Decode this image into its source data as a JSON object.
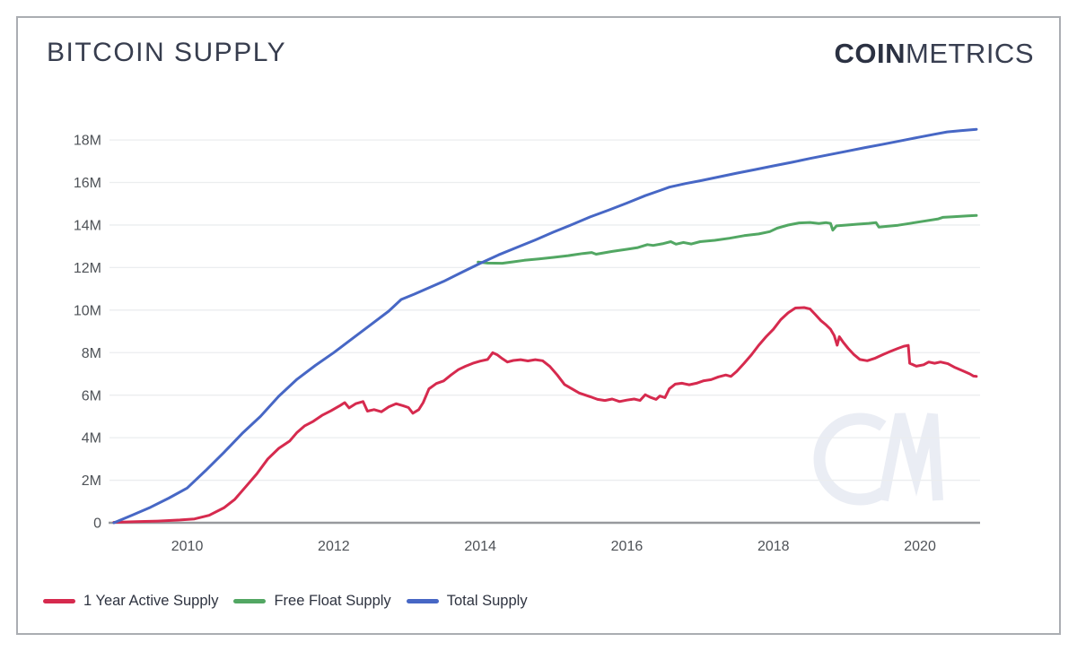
{
  "header": {
    "title": "BITCOIN SUPPLY",
    "logo_bold": "COIN",
    "logo_light": "METRICS"
  },
  "watermark": {
    "text": "CM",
    "color": "#eaedf4"
  },
  "chart_data": {
    "type": "line",
    "title": "BITCOIN SUPPLY",
    "xlabel": "",
    "ylabel": "",
    "x_unit": "year",
    "xlim": [
      2008.94,
      2020.82
    ],
    "ylim": [
      0,
      19.1
    ],
    "grid": "horizontal",
    "legend_position": "bottom-left",
    "axis_color": "#97999d",
    "gridline_color": "#ebedef",
    "yticks": [
      {
        "value": 0,
        "label": "0"
      },
      {
        "value": 2,
        "label": "2M"
      },
      {
        "value": 4,
        "label": "4M"
      },
      {
        "value": 6,
        "label": "6M"
      },
      {
        "value": 8,
        "label": "8M"
      },
      {
        "value": 10,
        "label": "10M"
      },
      {
        "value": 12,
        "label": "12M"
      },
      {
        "value": 14,
        "label": "14M"
      },
      {
        "value": 16,
        "label": "16M"
      },
      {
        "value": 18,
        "label": "18M"
      }
    ],
    "xticks": [
      {
        "value": 2010,
        "label": "2010"
      },
      {
        "value": 2012,
        "label": "2012"
      },
      {
        "value": 2014,
        "label": "2014"
      },
      {
        "value": 2016,
        "label": "2016"
      },
      {
        "value": 2018,
        "label": "2018"
      },
      {
        "value": 2020,
        "label": "2020"
      }
    ],
    "series": [
      {
        "name": "1 Year Active Supply",
        "color": "#d62a4e",
        "points": [
          [
            2009,
            0.02
          ],
          [
            2009.3,
            0.05
          ],
          [
            2009.6,
            0.08
          ],
          [
            2009.9,
            0.13
          ],
          [
            2010.1,
            0.18
          ],
          [
            2010.3,
            0.35
          ],
          [
            2010.5,
            0.7
          ],
          [
            2010.65,
            1.1
          ],
          [
            2010.8,
            1.7
          ],
          [
            2010.95,
            2.3
          ],
          [
            2011.1,
            3.0
          ],
          [
            2011.25,
            3.5
          ],
          [
            2011.4,
            3.85
          ],
          [
            2011.5,
            4.25
          ],
          [
            2011.6,
            4.55
          ],
          [
            2011.72,
            4.77
          ],
          [
            2011.84,
            5.05
          ],
          [
            2011.96,
            5.26
          ],
          [
            2012.08,
            5.5
          ],
          [
            2012.15,
            5.65
          ],
          [
            2012.21,
            5.4
          ],
          [
            2012.3,
            5.6
          ],
          [
            2012.4,
            5.7
          ],
          [
            2012.46,
            5.25
          ],
          [
            2012.55,
            5.32
          ],
          [
            2012.65,
            5.22
          ],
          [
            2012.75,
            5.45
          ],
          [
            2012.85,
            5.6
          ],
          [
            2012.95,
            5.5
          ],
          [
            2013.02,
            5.42
          ],
          [
            2013.08,
            5.15
          ],
          [
            2013.16,
            5.32
          ],
          [
            2013.22,
            5.65
          ],
          [
            2013.3,
            6.3
          ],
          [
            2013.4,
            6.55
          ],
          [
            2013.5,
            6.67
          ],
          [
            2013.6,
            6.95
          ],
          [
            2013.7,
            7.2
          ],
          [
            2013.8,
            7.36
          ],
          [
            2013.9,
            7.5
          ],
          [
            2014,
            7.6
          ],
          [
            2014.1,
            7.68
          ],
          [
            2014.17,
            8.0
          ],
          [
            2014.23,
            7.9
          ],
          [
            2014.3,
            7.72
          ],
          [
            2014.37,
            7.56
          ],
          [
            2014.45,
            7.63
          ],
          [
            2014.55,
            7.67
          ],
          [
            2014.65,
            7.61
          ],
          [
            2014.75,
            7.67
          ],
          [
            2014.85,
            7.62
          ],
          [
            2014.95,
            7.35
          ],
          [
            2015.05,
            6.95
          ],
          [
            2015.15,
            6.5
          ],
          [
            2015.25,
            6.3
          ],
          [
            2015.35,
            6.1
          ],
          [
            2015.5,
            5.93
          ],
          [
            2015.6,
            5.8
          ],
          [
            2015.7,
            5.75
          ],
          [
            2015.8,
            5.82
          ],
          [
            2015.9,
            5.7
          ],
          [
            2016,
            5.77
          ],
          [
            2016.1,
            5.82
          ],
          [
            2016.18,
            5.75
          ],
          [
            2016.25,
            6.02
          ],
          [
            2016.32,
            5.9
          ],
          [
            2016.4,
            5.8
          ],
          [
            2016.45,
            5.96
          ],
          [
            2016.52,
            5.88
          ],
          [
            2016.58,
            6.3
          ],
          [
            2016.66,
            6.52
          ],
          [
            2016.75,
            6.56
          ],
          [
            2016.85,
            6.49
          ],
          [
            2016.95,
            6.56
          ],
          [
            2017.05,
            6.68
          ],
          [
            2017.15,
            6.73
          ],
          [
            2017.25,
            6.86
          ],
          [
            2017.35,
            6.95
          ],
          [
            2017.42,
            6.88
          ],
          [
            2017.5,
            7.12
          ],
          [
            2017.6,
            7.5
          ],
          [
            2017.7,
            7.9
          ],
          [
            2017.8,
            8.35
          ],
          [
            2017.9,
            8.75
          ],
          [
            2018,
            9.1
          ],
          [
            2018.1,
            9.55
          ],
          [
            2018.2,
            9.87
          ],
          [
            2018.3,
            10.1
          ],
          [
            2018.42,
            10.12
          ],
          [
            2018.5,
            10.05
          ],
          [
            2018.57,
            9.8
          ],
          [
            2018.65,
            9.5
          ],
          [
            2018.72,
            9.3
          ],
          [
            2018.78,
            9.1
          ],
          [
            2018.83,
            8.8
          ],
          [
            2018.87,
            8.35
          ],
          [
            2018.9,
            8.75
          ],
          [
            2018.95,
            8.5
          ],
          [
            2019.02,
            8.2
          ],
          [
            2019.1,
            7.9
          ],
          [
            2019.18,
            7.68
          ],
          [
            2019.28,
            7.62
          ],
          [
            2019.38,
            7.73
          ],
          [
            2019.5,
            7.92
          ],
          [
            2019.6,
            8.06
          ],
          [
            2019.7,
            8.2
          ],
          [
            2019.78,
            8.3
          ],
          [
            2019.84,
            8.34
          ],
          [
            2019.86,
            7.5
          ],
          [
            2019.95,
            7.36
          ],
          [
            2020.05,
            7.43
          ],
          [
            2020.12,
            7.56
          ],
          [
            2020.2,
            7.5
          ],
          [
            2020.28,
            7.56
          ],
          [
            2020.38,
            7.48
          ],
          [
            2020.48,
            7.3
          ],
          [
            2020.58,
            7.15
          ],
          [
            2020.68,
            7.0
          ],
          [
            2020.73,
            6.9
          ],
          [
            2020.77,
            6.88
          ]
        ]
      },
      {
        "name": "Free Float Supply",
        "color": "#52a763",
        "points": [
          [
            2013.97,
            12.26
          ],
          [
            2014.1,
            12.21
          ],
          [
            2014.3,
            12.2
          ],
          [
            2014.45,
            12.27
          ],
          [
            2014.6,
            12.34
          ],
          [
            2014.8,
            12.41
          ],
          [
            2015,
            12.48
          ],
          [
            2015.2,
            12.56
          ],
          [
            2015.4,
            12.66
          ],
          [
            2015.52,
            12.71
          ],
          [
            2015.58,
            12.63
          ],
          [
            2015.8,
            12.76
          ],
          [
            2016,
            12.86
          ],
          [
            2016.15,
            12.94
          ],
          [
            2016.28,
            13.08
          ],
          [
            2016.36,
            13.04
          ],
          [
            2016.5,
            13.13
          ],
          [
            2016.6,
            13.22
          ],
          [
            2016.67,
            13.1
          ],
          [
            2016.77,
            13.18
          ],
          [
            2016.88,
            13.11
          ],
          [
            2017,
            13.22
          ],
          [
            2017.2,
            13.28
          ],
          [
            2017.4,
            13.38
          ],
          [
            2017.6,
            13.5
          ],
          [
            2017.8,
            13.58
          ],
          [
            2017.95,
            13.69
          ],
          [
            2018.05,
            13.85
          ],
          [
            2018.2,
            14.0
          ],
          [
            2018.35,
            14.1
          ],
          [
            2018.5,
            14.12
          ],
          [
            2018.62,
            14.07
          ],
          [
            2018.72,
            14.11
          ],
          [
            2018.78,
            14.08
          ],
          [
            2018.81,
            13.76
          ],
          [
            2018.86,
            13.96
          ],
          [
            2019,
            14.0
          ],
          [
            2019.15,
            14.04
          ],
          [
            2019.3,
            14.08
          ],
          [
            2019.4,
            14.11
          ],
          [
            2019.44,
            13.9
          ],
          [
            2019.55,
            13.94
          ],
          [
            2019.7,
            13.99
          ],
          [
            2019.85,
            14.07
          ],
          [
            2020.05,
            14.18
          ],
          [
            2020.25,
            14.29
          ],
          [
            2020.31,
            14.36
          ],
          [
            2020.45,
            14.39
          ],
          [
            2020.65,
            14.43
          ],
          [
            2020.77,
            14.45
          ]
        ]
      },
      {
        "name": "Total Supply",
        "color": "#4767c5",
        "points": [
          [
            2009,
            0
          ],
          [
            2009.25,
            0.36
          ],
          [
            2009.5,
            0.73
          ],
          [
            2009.75,
            1.16
          ],
          [
            2010,
            1.63
          ],
          [
            2010.25,
            2.45
          ],
          [
            2010.5,
            3.3
          ],
          [
            2010.75,
            4.2
          ],
          [
            2011,
            5.0
          ],
          [
            2011.25,
            5.95
          ],
          [
            2011.5,
            6.75
          ],
          [
            2011.75,
            7.4
          ],
          [
            2012,
            8.0
          ],
          [
            2012.25,
            8.65
          ],
          [
            2012.5,
            9.3
          ],
          [
            2012.75,
            9.95
          ],
          [
            2012.92,
            10.5
          ],
          [
            2013.1,
            10.75
          ],
          [
            2013.3,
            11.05
          ],
          [
            2013.5,
            11.35
          ],
          [
            2013.75,
            11.78
          ],
          [
            2014,
            12.2
          ],
          [
            2014.25,
            12.6
          ],
          [
            2014.5,
            12.95
          ],
          [
            2014.75,
            13.3
          ],
          [
            2015,
            13.67
          ],
          [
            2015.25,
            14.02
          ],
          [
            2015.5,
            14.38
          ],
          [
            2015.75,
            14.7
          ],
          [
            2016,
            15.03
          ],
          [
            2016.25,
            15.38
          ],
          [
            2016.45,
            15.62
          ],
          [
            2016.58,
            15.78
          ],
          [
            2016.8,
            15.95
          ],
          [
            2017,
            16.08
          ],
          [
            2017.25,
            16.26
          ],
          [
            2017.5,
            16.44
          ],
          [
            2017.75,
            16.61
          ],
          [
            2018,
            16.78
          ],
          [
            2018.25,
            16.95
          ],
          [
            2018.5,
            17.13
          ],
          [
            2018.75,
            17.3
          ],
          [
            2019,
            17.47
          ],
          [
            2019.25,
            17.64
          ],
          [
            2019.5,
            17.8
          ],
          [
            2019.75,
            17.97
          ],
          [
            2020,
            18.14
          ],
          [
            2020.2,
            18.27
          ],
          [
            2020.37,
            18.38
          ],
          [
            2020.55,
            18.44
          ],
          [
            2020.77,
            18.5
          ]
        ]
      }
    ]
  }
}
